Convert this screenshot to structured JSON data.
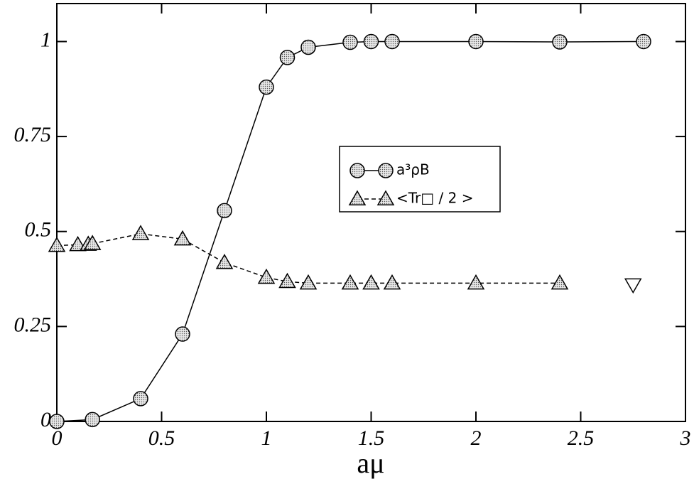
{
  "chart_data": {
    "type": "line",
    "x_label": "aμ",
    "xlim": [
      0,
      3
    ],
    "xticks": [
      0,
      0.5,
      1,
      1.5,
      2,
      2.5,
      3
    ],
    "ylim": [
      0,
      1.1
    ],
    "yticks": [
      0,
      0.25,
      0.5,
      0.75,
      1
    ],
    "series": [
      {
        "name": "a³ρB",
        "color": "#000000",
        "line": "solid",
        "marker": "circle",
        "x": [
          0,
          0.17,
          0.4,
          0.6,
          0.8,
          1.0,
          1.1,
          1.2,
          1.4,
          1.5,
          1.6,
          2.0,
          2.4,
          2.8
        ],
        "values": [
          0,
          0.005,
          0.06,
          0.23,
          0.555,
          0.88,
          0.958,
          0.985,
          0.998,
          1,
          1,
          1,
          0.999,
          1
        ]
      },
      {
        "name": "<Tr□ / 2 >",
        "color": "#000000",
        "line": "dashed",
        "marker": "triangle",
        "x": [
          0,
          0.1,
          0.15,
          0.17,
          0.4,
          0.6,
          0.8,
          1.0,
          1.1,
          1.2,
          1.4,
          1.5,
          1.6,
          2.0,
          2.4
        ],
        "values": [
          0.463,
          0.465,
          0.466,
          0.468,
          0.494,
          0.48,
          0.418,
          0.379,
          0.368,
          0.364,
          0.364,
          0.364,
          0.364,
          0.364,
          0.364
        ]
      },
      {
        "color": "#000000",
        "line": "none",
        "marker": "triangle-down",
        "x": [
          2.75
        ],
        "values": [
          0.36
        ]
      }
    ]
  }
}
